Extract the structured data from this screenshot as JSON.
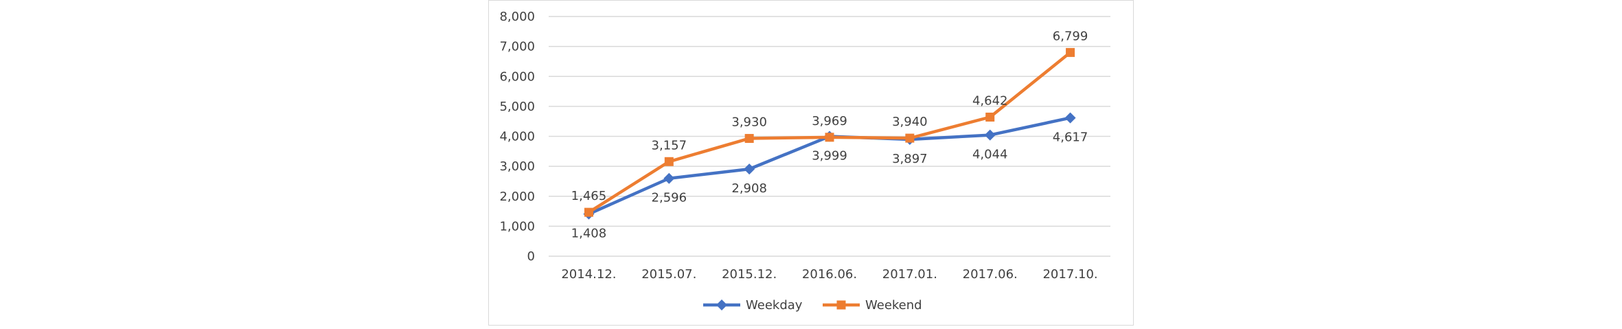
{
  "chart_data": {
    "type": "line",
    "categories": [
      "2014.12.",
      "2015.07.",
      "2015.12.",
      "2016.06.",
      "2017.01.",
      "2017.06.",
      "2017.10."
    ],
    "ylim": [
      0,
      8000
    ],
    "yticks": [
      "0",
      "1,000",
      "2,000",
      "3,000",
      "4,000",
      "5,000",
      "6,000",
      "7,000",
      "8,000"
    ],
    "grid": true,
    "legend": "bottom",
    "series": [
      {
        "name": "Weekday",
        "color": "#4472c4",
        "marker": "diamond",
        "values": [
          1408,
          2596,
          2908,
          3999,
          3897,
          4044,
          4617
        ],
        "labels": [
          "1,408",
          "2,596",
          "2,908",
          "3,999",
          "3,897",
          "4,044",
          "4,617"
        ]
      },
      {
        "name": "Weekend",
        "color": "#ed7d31",
        "marker": "square",
        "values": [
          1465,
          3157,
          3930,
          3969,
          3940,
          4642,
          6799
        ],
        "labels": [
          "1,465",
          "3,157",
          "3,930",
          "3,969",
          "3,940",
          "4,642",
          "6,799"
        ]
      }
    ]
  }
}
